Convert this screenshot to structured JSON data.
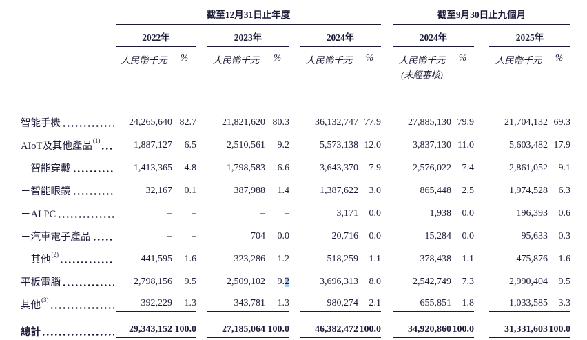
{
  "colors": {
    "text": "#1b1b38",
    "selection_highlight": "#a9cbe9",
    "background": "#ffffff"
  },
  "table": {
    "period_groups": [
      {
        "title": "截至12月31日止年度",
        "years": [
          "2022年",
          "2023年",
          "2024年"
        ]
      },
      {
        "title": "截至9月30日止九個月",
        "years": [
          "2024年",
          "2025年"
        ]
      }
    ],
    "unit_header": "人民幣千元",
    "percent_header": "%",
    "unaudited_note": "(未經審核)",
    "rows": [
      {
        "label": "智能手機",
        "sup": "",
        "cells": [
          "24,265,640",
          "82.7",
          "21,821,620",
          "80.3",
          "36,132,747",
          "77.9",
          "27,885,130",
          "79.9",
          "21,704,132",
          "69.3"
        ]
      },
      {
        "label": "AIoT及其他產品",
        "sup": "(1)",
        "cells": [
          "1,887,127",
          "6.5",
          "2,510,561",
          "9.2",
          "5,573,138",
          "12.0",
          "3,837,130",
          "11.0",
          "5,603,482",
          "17.9"
        ]
      },
      {
        "label": "－智能穿戴",
        "sup": "",
        "cells": [
          "1,413,365",
          "4.8",
          "1,798,583",
          "6.6",
          "3,643,370",
          "7.9",
          "2,576,022",
          "7.4",
          "2,861,052",
          "9.1"
        ]
      },
      {
        "label": "－智能眼鏡",
        "sup": "",
        "cells": [
          "32,167",
          "0.1",
          "387,988",
          "1.4",
          "1,387,622",
          "3.0",
          "865,448",
          "2.5",
          "1,974,528",
          "6.3"
        ]
      },
      {
        "label": "－AI PC",
        "sup": "",
        "cells": [
          "–",
          "–",
          "–",
          "–",
          "3,171",
          "0.0",
          "1,938",
          "0.0",
          "196,393",
          "0.6"
        ]
      },
      {
        "label": "－汽車電子產品",
        "sup": "",
        "cells": [
          "–",
          "–",
          "704",
          "0.0",
          "20,716",
          "0.0",
          "15,284",
          "0.0",
          "95,633",
          "0.3"
        ]
      },
      {
        "label": "－其他",
        "sup": "(2)",
        "cells": [
          "441,595",
          "1.6",
          "323,286",
          "1.2",
          "518,259",
          "1.1",
          "378,438",
          "1.1",
          "475,876",
          "1.6"
        ]
      },
      {
        "label": "平板電腦",
        "sup": "",
        "cells": [
          "2,798,156",
          "9.5",
          "2,509,102",
          "9.2",
          "3,696,313",
          "8.0",
          "2,542,749",
          "7.3",
          "2,990,404",
          "9.5"
        ]
      },
      {
        "label": "其他",
        "sup": "(3)",
        "cells": [
          "392,229",
          "1.3",
          "343,781",
          "1.3",
          "980,274",
          "2.1",
          "655,851",
          "1.8",
          "1,033,585",
          "3.3"
        ]
      }
    ],
    "total_row": {
      "label": "總計",
      "cells": [
        "29,343,152",
        "100.0",
        "27,185,064",
        "100.0",
        "46,382,472",
        "100.0",
        "34,920,860",
        "100.0",
        "31,331,603",
        "100.0"
      ]
    },
    "selection_highlight": {
      "before": "9.",
      "selected": "2",
      "full_value": "9.2"
    }
  }
}
